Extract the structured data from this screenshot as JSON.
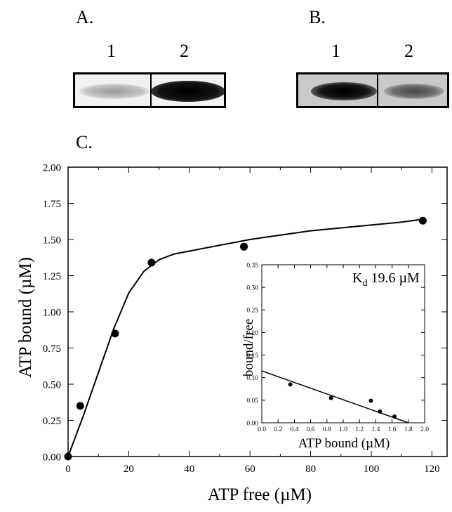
{
  "panels": {
    "a": {
      "letter": "A.",
      "lanes": [
        "1",
        "2"
      ]
    },
    "b": {
      "letter": "B.",
      "lanes": [
        "1",
        "2"
      ]
    },
    "c": {
      "letter": "C."
    }
  },
  "colors": {
    "ink": "#000000",
    "background": "#ffffff"
  },
  "chart_data": [
    {
      "type": "scatter",
      "title": "",
      "xlabel": "ATP free (µM)",
      "ylabel": "ATP bound (µM)",
      "xlim": [
        0,
        125
      ],
      "ylim": [
        0,
        2.0
      ],
      "xticks": [
        "0",
        "20",
        "40",
        "60",
        "80",
        "100",
        "120"
      ],
      "yticks": [
        "0.00",
        "0.25",
        "0.50",
        "0.75",
        "1.00",
        "1.25",
        "1.50",
        "1.75",
        "2.00"
      ],
      "points": {
        "x": [
          0,
          4,
          15.5,
          27.5,
          58,
          117
        ],
        "y": [
          0.0,
          0.35,
          0.85,
          1.34,
          1.45,
          1.63
        ]
      },
      "fit_curve": {
        "x": [
          0,
          5,
          10,
          15,
          20,
          25,
          30,
          35,
          40,
          50,
          60,
          70,
          80,
          90,
          100,
          110,
          117
        ],
        "y": [
          0.0,
          0.28,
          0.58,
          0.88,
          1.13,
          1.28,
          1.36,
          1.4,
          1.42,
          1.46,
          1.5,
          1.53,
          1.56,
          1.58,
          1.6,
          1.62,
          1.64
        ]
      },
      "grid": false,
      "legend": "none"
    },
    {
      "type": "scatter",
      "title": "",
      "annotation": {
        "k": "K",
        "sub": "d",
        "value": " 19.6 µM"
      },
      "xlabel": "ATP bound (µM)",
      "ylabel": "bound/free",
      "xlim": [
        0,
        2.0
      ],
      "ylim": [
        0,
        0.35
      ],
      "xticks": [
        "0.0",
        "0.2",
        "0.4",
        "0.6",
        "0.8",
        "1.0",
        "1.2",
        "1.4",
        "1.6",
        "1.8",
        "2.0"
      ],
      "yticks": [
        "0.00",
        "0.05",
        "0.10",
        "0.15",
        "0.20",
        "0.25",
        "0.30",
        "0.35"
      ],
      "points": {
        "x": [
          0.35,
          0.85,
          1.34,
          1.45,
          1.63
        ],
        "y": [
          0.085,
          0.055,
          0.049,
          0.025,
          0.014
        ]
      },
      "fit_line": {
        "x": [
          0,
          1.8
        ],
        "y": [
          0.115,
          0.0
        ]
      },
      "grid": false,
      "legend": "none"
    }
  ]
}
